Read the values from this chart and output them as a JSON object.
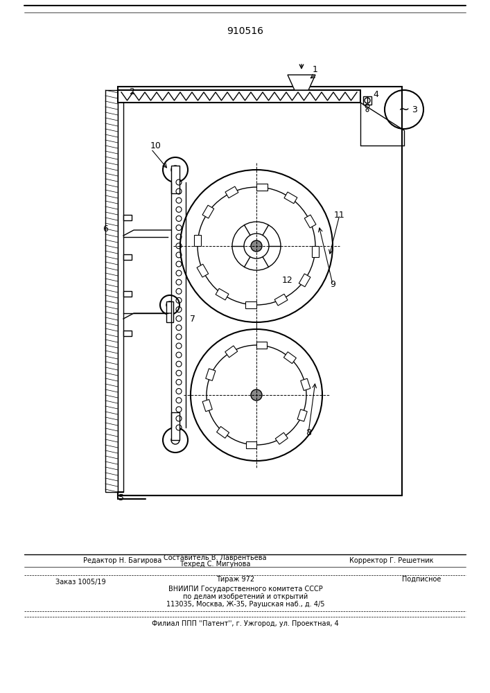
{
  "patent_number": "910516",
  "background_color": "#ffffff",
  "line_color": "#000000",
  "hatch_color": "#000000",
  "footer_lines": [
    "Редактор Н. Багирова",
    "Заказ 1005/19",
    "ВНИИПИ Государственного комитета СССР",
    "по делам изобретений и открытий",
    "113035, Москва, Ж-35, Раушская наб., д. 4/5",
    "Филиал ППП ''Патент'', г. Ужгород, ул. Проектная, 4"
  ],
  "footer_col2": [
    "Составитель В. Лаврентьева",
    "Техред С. Мигунова",
    "Тираж 972",
    "Корректор Г. Решетник",
    "Подписное"
  ]
}
